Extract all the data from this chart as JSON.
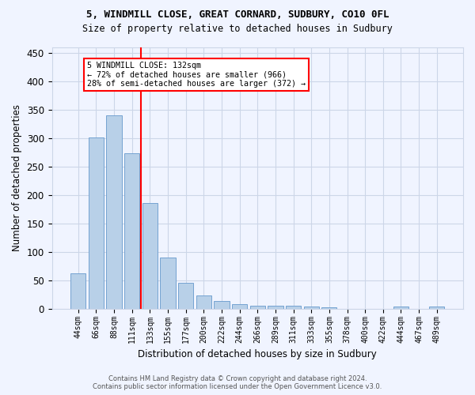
{
  "title1": "5, WINDMILL CLOSE, GREAT CORNARD, SUDBURY, CO10 0FL",
  "title2": "Size of property relative to detached houses in Sudbury",
  "xlabel": "Distribution of detached houses by size in Sudbury",
  "ylabel": "Number of detached properties",
  "footer1": "Contains HM Land Registry data © Crown copyright and database right 2024.",
  "footer2": "Contains public sector information licensed under the Open Government Licence v3.0.",
  "categories": [
    "44sqm",
    "66sqm",
    "88sqm",
    "111sqm",
    "133sqm",
    "155sqm",
    "177sqm",
    "200sqm",
    "222sqm",
    "244sqm",
    "266sqm",
    "289sqm",
    "311sqm",
    "333sqm",
    "355sqm",
    "378sqm",
    "400sqm",
    "422sqm",
    "444sqm",
    "467sqm",
    "489sqm"
  ],
  "values": [
    62,
    301,
    340,
    274,
    186,
    90,
    45,
    23,
    13,
    8,
    5,
    5,
    5,
    4,
    3,
    0,
    0,
    0,
    4,
    0,
    4
  ],
  "bar_color": "#b8d0e8",
  "bar_edge_color": "#6699cc",
  "grid_color": "#ccd6e8",
  "annotation_line_color": "red",
  "annotation_box_line1": "5 WINDMILL CLOSE: 132sqm",
  "annotation_box_line2": "← 72% of detached houses are smaller (966)",
  "annotation_box_line3": "28% of semi-detached houses are larger (372) →",
  "ylim": [
    0,
    460
  ],
  "yticks": [
    0,
    50,
    100,
    150,
    200,
    250,
    300,
    350,
    400,
    450
  ],
  "bg_color": "#f0f4ff",
  "red_line_x": 3.5
}
